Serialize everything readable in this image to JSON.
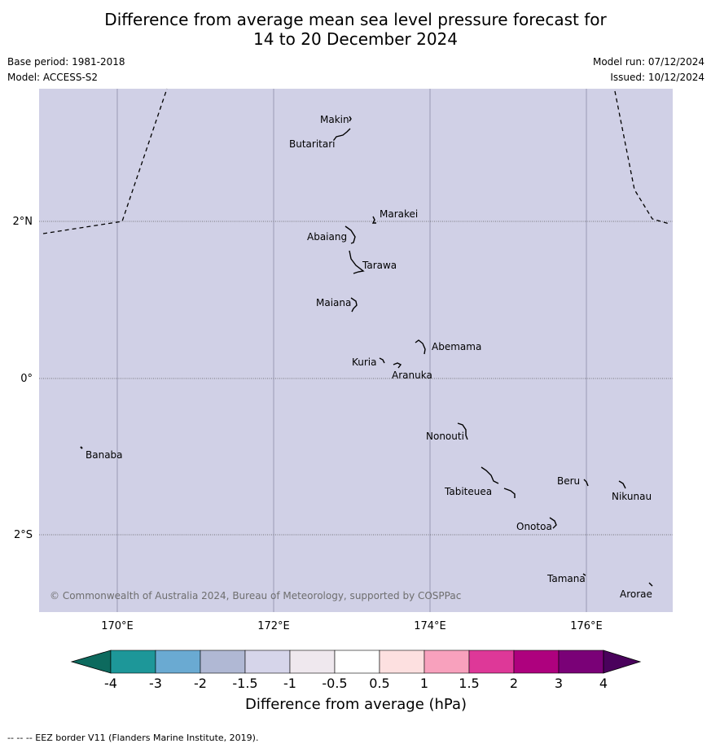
{
  "title_line1": "Difference from average mean sea level pressure forecast for",
  "title_line2": "14 to 20 December 2024",
  "base_period": "Base period: 1981-2018",
  "model": "Model: ACCESS-S2",
  "model_run": "Model run: 07/12/2024",
  "issued": "Issued: 10/12/2024",
  "map": {
    "background_color": "#d0d0e6",
    "copyright": "© Commonwealth of Australia 2024, Bureau of Meteorology, supported by COSPPac",
    "lon_ticks": [
      "170°E",
      "172°E",
      "174°E",
      "176°E"
    ],
    "lat_ticks": [
      "2°N",
      "0°",
      "2°S"
    ],
    "places": [
      "Makin",
      "Butaritari",
      "Marakei",
      "Abaiang",
      "Tarawa",
      "Maiana",
      "Abemama",
      "Kuria",
      "Aranuka",
      "Nonouti",
      "Banaba",
      "Beru",
      "Tabiteuea",
      "Nikunau",
      "Onotoa",
      "Tamana",
      "Arorae"
    ]
  },
  "colorbar": {
    "title": "Difference from average (hPa)",
    "labels": [
      "-4",
      "-3",
      "-2",
      "-1.5",
      "-1",
      "-0.5",
      "0.5",
      "1",
      "1.5",
      "2",
      "3",
      "4"
    ],
    "colors": [
      "#1d9799",
      "#6aaad2",
      "#b0b8d4",
      "#d6d5ea",
      "#efe8ee",
      "#ffffff",
      "#fde0e0",
      "#f8a1bd",
      "#de3898",
      "#ae017e",
      "#7a0177"
    ],
    "under_color": "#0d6a5e",
    "over_color": "#4a025c"
  },
  "footnote": "--  --  -- EEZ border V11 (Flanders Marine Institute, 2019)."
}
